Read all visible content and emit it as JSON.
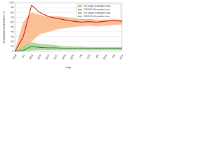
{
  "chart_data": {
    "type": "line",
    "x_label": "Date",
    "y_label": "Cumulative Distribution, %",
    "categories": [
      "3/18",
      "4/1",
      "4/15",
      "4/29",
      "5/13",
      "5/27",
      "6/10",
      "6/24",
      "7/8",
      "7/22",
      "8/5",
      "8/19",
      "9/2",
      "9/16"
    ],
    "ylim": [
      0,
      100
    ],
    "yticks": [
      0,
      10,
      20,
      30,
      40,
      50,
      60,
      70,
      80,
      90,
      100
    ],
    "grid": true,
    "series": [
      {
        "name": "GS range of weather loss",
        "kind": "range",
        "color": "#f7b27a",
        "low": [
          0,
          5,
          20,
          35,
          40,
          45,
          48,
          50,
          52,
          53,
          52,
          53,
          54,
          55
        ],
        "values": [
          0,
          60,
          80,
          75,
          70,
          72,
          70,
          68,
          67,
          66,
          64,
          64,
          65,
          64
        ]
      },
      {
        "name": "GS2000-09 weather loss",
        "kind": "line",
        "color": "#d40000",
        "values": [
          0,
          30,
          95,
          80,
          72,
          68,
          65,
          62,
          60,
          61,
          60,
          62,
          63,
          62
        ]
      },
      {
        "name": "GS range of weather loss",
        "kind": "range",
        "color": "#9fd08a",
        "low": [
          0,
          0,
          2,
          3,
          3,
          3,
          3,
          3,
          3,
          3,
          3,
          3,
          3,
          3
        ],
        "values": [
          0,
          10,
          18,
          15,
          14,
          12,
          10,
          9,
          9,
          8,
          8,
          8,
          8,
          8
        ]
      },
      {
        "name": "GS2000-09 weather loss",
        "kind": "line",
        "color": "#2e7d32",
        "values": [
          0,
          2,
          10,
          8,
          7,
          7,
          6,
          6,
          6,
          6,
          6,
          6,
          6,
          6
        ]
      }
    ]
  }
}
